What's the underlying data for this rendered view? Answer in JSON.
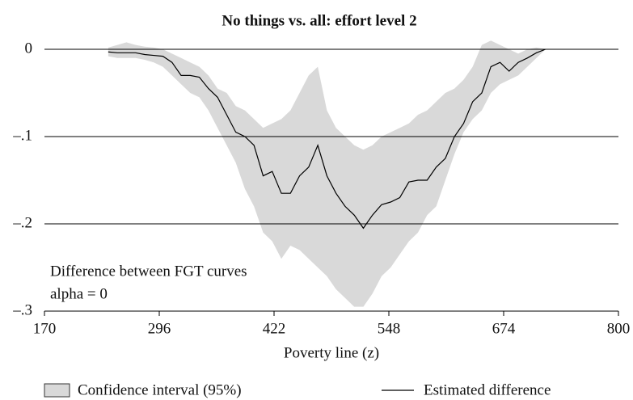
{
  "chart_data": {
    "type": "line",
    "title": "No things vs. all: effort level 2",
    "x_label": "Poverty line (z)",
    "annotations": [
      "Difference between FGT curves",
      "alpha = 0"
    ],
    "x": [
      240,
      250,
      260,
      270,
      280,
      290,
      300,
      310,
      320,
      330,
      340,
      350,
      360,
      370,
      380,
      390,
      400,
      410,
      420,
      430,
      440,
      450,
      460,
      470,
      480,
      490,
      500,
      510,
      520,
      530,
      540,
      550,
      560,
      570,
      580,
      590,
      600,
      610,
      620,
      630,
      640,
      650,
      660,
      670,
      680,
      690,
      700,
      710,
      720
    ],
    "series": [
      {
        "name": "Confidence interval (95%)",
        "color": "#d9d9d9",
        "upper": [
          0.002,
          0.005,
          0.008,
          0.005,
          0.003,
          0.002,
          0,
          -0.005,
          -0.01,
          -0.015,
          -0.02,
          -0.03,
          -0.045,
          -0.05,
          -0.065,
          -0.07,
          -0.08,
          -0.09,
          -0.085,
          -0.08,
          -0.07,
          -0.05,
          -0.03,
          -0.02,
          -0.07,
          -0.09,
          -0.1,
          -0.11,
          -0.115,
          -0.11,
          -0.1,
          -0.095,
          -0.09,
          -0.085,
          -0.075,
          -0.07,
          -0.06,
          -0.05,
          -0.045,
          -0.035,
          -0.02,
          0.005,
          0.01,
          0.005,
          0,
          -0.005,
          0,
          0.002,
          0
        ],
        "lower": [
          -0.008,
          -0.01,
          -0.01,
          -0.01,
          -0.012,
          -0.015,
          -0.02,
          -0.03,
          -0.04,
          -0.05,
          -0.055,
          -0.07,
          -0.09,
          -0.11,
          -0.13,
          -0.16,
          -0.18,
          -0.21,
          -0.22,
          -0.24,
          -0.225,
          -0.23,
          -0.24,
          -0.25,
          -0.26,
          -0.275,
          -0.285,
          -0.295,
          -0.295,
          -0.28,
          -0.26,
          -0.25,
          -0.235,
          -0.22,
          -0.21,
          -0.19,
          -0.18,
          -0.15,
          -0.12,
          -0.095,
          -0.08,
          -0.07,
          -0.05,
          -0.04,
          -0.035,
          -0.03,
          -0.02,
          -0.01,
          0
        ]
      },
      {
        "name": "Estimated difference",
        "color": "#000000",
        "values": [
          -0.003,
          -0.004,
          -0.004,
          -0.004,
          -0.006,
          -0.007,
          -0.008,
          -0.015,
          -0.03,
          -0.03,
          -0.032,
          -0.045,
          -0.055,
          -0.075,
          -0.095,
          -0.1,
          -0.11,
          -0.145,
          -0.14,
          -0.165,
          -0.165,
          -0.145,
          -0.135,
          -0.11,
          -0.145,
          -0.165,
          -0.18,
          -0.19,
          -0.205,
          -0.19,
          -0.178,
          -0.175,
          -0.17,
          -0.152,
          -0.15,
          -0.15,
          -0.135,
          -0.125,
          -0.1,
          -0.085,
          -0.06,
          -0.05,
          -0.02,
          -0.015,
          -0.025,
          -0.015,
          -0.01,
          -0.004,
          0
        ]
      }
    ],
    "xlim": [
      170,
      800
    ],
    "xticks": [
      170,
      296,
      422,
      548,
      674,
      800
    ],
    "ylim": [
      -0.3,
      0
    ],
    "yticks": [
      {
        "value": 0,
        "label": "0"
      },
      {
        "value": -0.1,
        "label": "–.1"
      },
      {
        "value": -0.2,
        "label": "–.2"
      },
      {
        "value": -0.3,
        "label": "–.3"
      }
    ],
    "grid": true
  }
}
